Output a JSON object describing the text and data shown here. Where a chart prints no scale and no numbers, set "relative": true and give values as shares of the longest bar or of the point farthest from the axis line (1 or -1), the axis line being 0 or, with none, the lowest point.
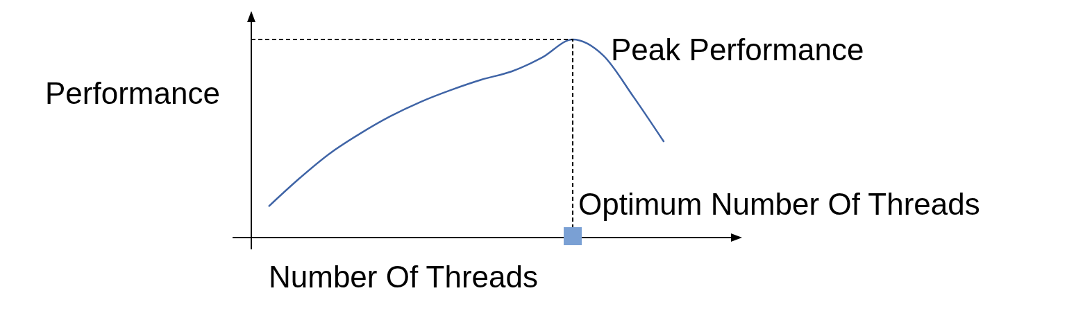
{
  "chart_data": {
    "type": "line",
    "relative": true,
    "xlabel": "Number Of Threads",
    "ylabel": "Performance",
    "categories": [
      null,
      null,
      null,
      null,
      null,
      null,
      null,
      null,
      null,
      null,
      null,
      null,
      null,
      null
    ],
    "series": [
      {
        "color": "#3f64a6",
        "values": [
          0.157,
          0.297,
          0.423,
          0.524,
          0.612,
          0.685,
          0.745,
          0.797,
          0.839,
          0.909,
          1,
          0.92,
          0.71,
          0.483
        ]
      }
    ],
    "marker": "none",
    "line_style": "solid",
    "grid": false,
    "legend": false,
    "annotations": [
      "Peak Performance",
      "Optimum Number Of Threads"
    ]
  }
}
